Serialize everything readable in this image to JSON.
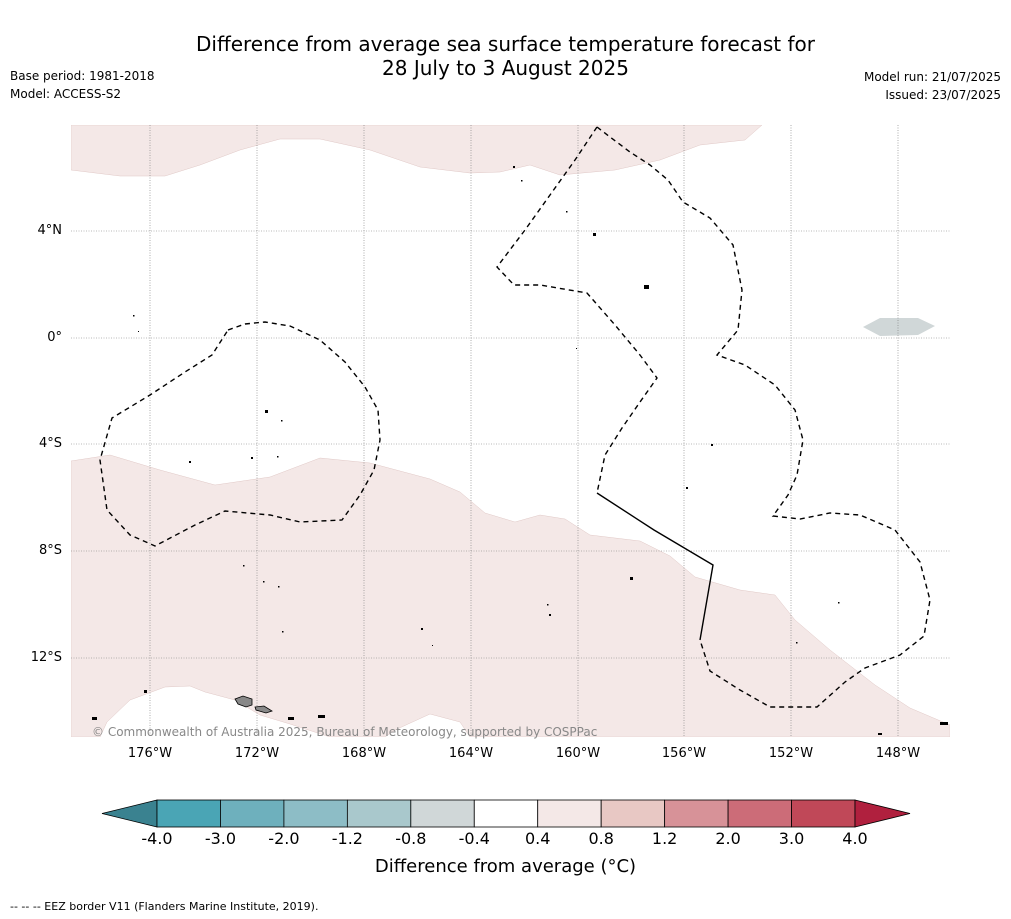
{
  "title_line1": "Difference from average sea surface temperature forecast for",
  "title_line2": "28 July to 3 August 2025",
  "base_period": "Base period: 1981-2018",
  "model": "Model: ACCESS-S2",
  "model_run": "Model run: 21/07/2025",
  "issued": "Issued: 23/07/2025",
  "copyright": "© Commonwealth of Australia 2025, Bureau of Meteorology, supported by COSPPac",
  "lat_labels": [
    "4°N",
    "0°",
    "4°S",
    "8°S",
    "12°S"
  ],
  "lon_labels": [
    "176°W",
    "172°W",
    "168°W",
    "164°W",
    "160°W",
    "156°W",
    "152°W",
    "148°W"
  ],
  "colorbar": {
    "labels": [
      "-4.0",
      "-3.0",
      "-2.0",
      "-1.2",
      "-0.8",
      "-0.4",
      "0.4",
      "0.8",
      "1.2",
      "2.0",
      "3.0",
      "4.0"
    ],
    "colors": [
      "#4aa5b5",
      "#6eb0bd",
      "#8dbdc6",
      "#a9c8cc",
      "#d0d7d8",
      "#ffffff",
      "#f4e8e7",
      "#e8c8c4",
      "#d79298",
      "#cc6c78",
      "#c04858"
    ],
    "under_color": "#3a8290",
    "over_color": "#b0203e",
    "title": "Difference from average (°C)"
  },
  "footnote": "--  --  -- EEZ border V11 (Flanders Marine Institute, 2019).",
  "colors": {
    "warm_anomaly_fill": "#f4e8e7",
    "cool_anomaly_fill": "#d0d7d8",
    "grid": "#777777"
  }
}
